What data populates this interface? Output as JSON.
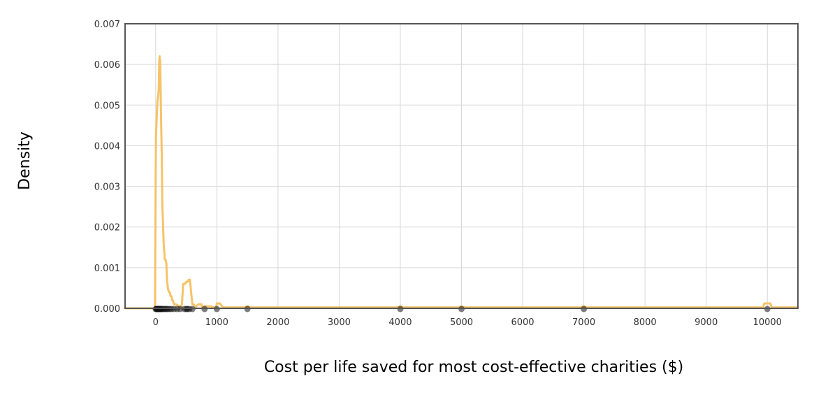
{
  "chart_data": {
    "type": "line",
    "title": "",
    "xlabel": "Cost per life saved for most cost-effective charities ($)",
    "ylabel": "Density",
    "xlim": [
      -500,
      10500
    ],
    "ylim": [
      0,
      0.007
    ],
    "x_ticks": [
      0,
      1000,
      2000,
      3000,
      4000,
      5000,
      6000,
      7000,
      8000,
      9000,
      10000
    ],
    "y_ticks": [
      0,
      0.001,
      0.002,
      0.003,
      0.004,
      0.005,
      0.006,
      0.007
    ],
    "x_tick_labels": [
      "0",
      "1000",
      "2000",
      "3000",
      "4000",
      "5000",
      "6000",
      "7000",
      "8000",
      "9000",
      "10000"
    ],
    "y_tick_labels": [
      "0.000",
      "0.001",
      "0.002",
      "0.003",
      "0.004",
      "0.005",
      "0.006",
      "0.007"
    ],
    "grid": true,
    "legend": "none",
    "series": [
      {
        "color": "#f5c060",
        "x": [
          -500,
          -10,
          -5,
          0,
          5,
          10,
          20,
          30,
          40,
          50,
          55,
          60,
          65,
          70,
          75,
          80,
          90,
          100,
          110,
          120,
          130,
          150,
          160,
          175,
          185,
          200,
          215,
          230,
          245,
          260,
          270,
          280,
          300,
          330,
          380,
          410,
          430,
          450,
          460,
          480,
          500,
          520,
          540,
          560,
          580,
          600,
          620,
          650,
          700,
          750,
          760,
          800,
          850,
          900,
          950,
          990,
          1000,
          1050,
          1100,
          1450,
          1500,
          1550,
          3950,
          4000,
          4050,
          4950,
          5000,
          5050,
          6950,
          7000,
          7050,
          9930,
          9950,
          10000,
          10050,
          10070,
          10500
        ],
        "y": [
          0,
          0,
          0.0015,
          0.0032,
          0.0042,
          0.0044,
          0.0048,
          0.0051,
          0.0052,
          0.0054,
          0.0058,
          0.0061,
          0.0062,
          0.0059,
          0.0061,
          0.0055,
          0.0045,
          0.0038,
          0.0025,
          0.0021,
          0.0016,
          0.0012,
          0.0012,
          0.0011,
          0.0007,
          0.0005,
          0.0004,
          0.0004,
          0.0003,
          0.0003,
          0.0002,
          0.0002,
          0.0001,
          0.0001,
          5e-05,
          3e-05,
          0.0001,
          0.0006,
          0.0006,
          0.0006,
          0.00065,
          0.00065,
          0.0007,
          0.0007,
          0.0004,
          0.0001,
          0.0001,
          3e-05,
          0.0001,
          0.0001,
          2e-05,
          5e-05,
          5e-05,
          5e-05,
          2e-05,
          2e-05,
          0.00012,
          0.00012,
          2e-05,
          2e-05,
          5e-05,
          2e-05,
          2e-05,
          5e-05,
          2e-05,
          2e-05,
          5e-05,
          2e-05,
          2e-05,
          5e-05,
          2e-05,
          2e-05,
          0.00012,
          0.00012,
          0.00012,
          2e-05,
          2e-05
        ]
      }
    ],
    "rug_points": [
      0,
      10,
      20,
      25,
      30,
      40,
      50,
      60,
      70,
      80,
      90,
      100,
      120,
      140,
      160,
      180,
      200,
      230,
      260,
      300,
      350,
      400,
      470,
      500,
      520,
      550,
      600,
      800,
      1000,
      1500,
      4000,
      5000,
      7000,
      10000
    ]
  }
}
